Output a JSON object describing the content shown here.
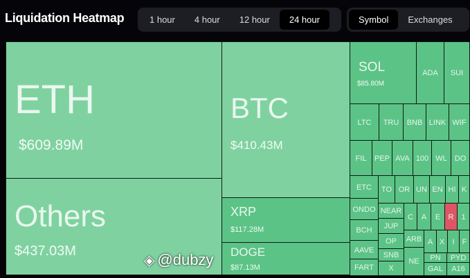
{
  "header": {
    "title": "Liquidation Heatmap",
    "timeframes": [
      "1 hour",
      "4 hour",
      "12 hour",
      "24 hour"
    ],
    "selected_timeframe": "24 hour",
    "views": [
      "Symbol",
      "Exchanges"
    ],
    "selected_view": "Symbol"
  },
  "colors": {
    "long_liq": "#5cc386",
    "short_liq": "#e05565",
    "large_tile": "#7fd2a0"
  },
  "tiles": {
    "eth": {
      "symbol": "ETH",
      "value": "$609.89M"
    },
    "others": {
      "symbol": "Others",
      "value": "$437.03M"
    },
    "btc": {
      "symbol": "BTC",
      "value": "$410.43M"
    },
    "xrp": {
      "symbol": "XRP",
      "value": "$117.28M"
    },
    "doge": {
      "symbol": "DOGE",
      "value": "$87.13M"
    },
    "sol": {
      "symbol": "SOL",
      "value": "$85.80M"
    },
    "small": [
      "ADA",
      "SUI",
      "LTC",
      "TRU",
      "BNB",
      "LINK",
      "WIF",
      "FIL",
      "PEP",
      "AVA",
      "100",
      "WL",
      "DO",
      "ETC",
      "ONDO",
      "BCH",
      "AAVE",
      "FART",
      "TO",
      "OR",
      "UN",
      "EN",
      "HI",
      "K",
      "NEAR",
      "JUP",
      "OP",
      "SNB",
      "X",
      "C",
      "A",
      "E",
      "R",
      "1",
      "ARB",
      "NE",
      "A",
      "X",
      "I",
      "F",
      "PN",
      "PYD",
      "GAL",
      "A16"
    ]
  },
  "watermark": {
    "handle": "@dubzy"
  }
}
